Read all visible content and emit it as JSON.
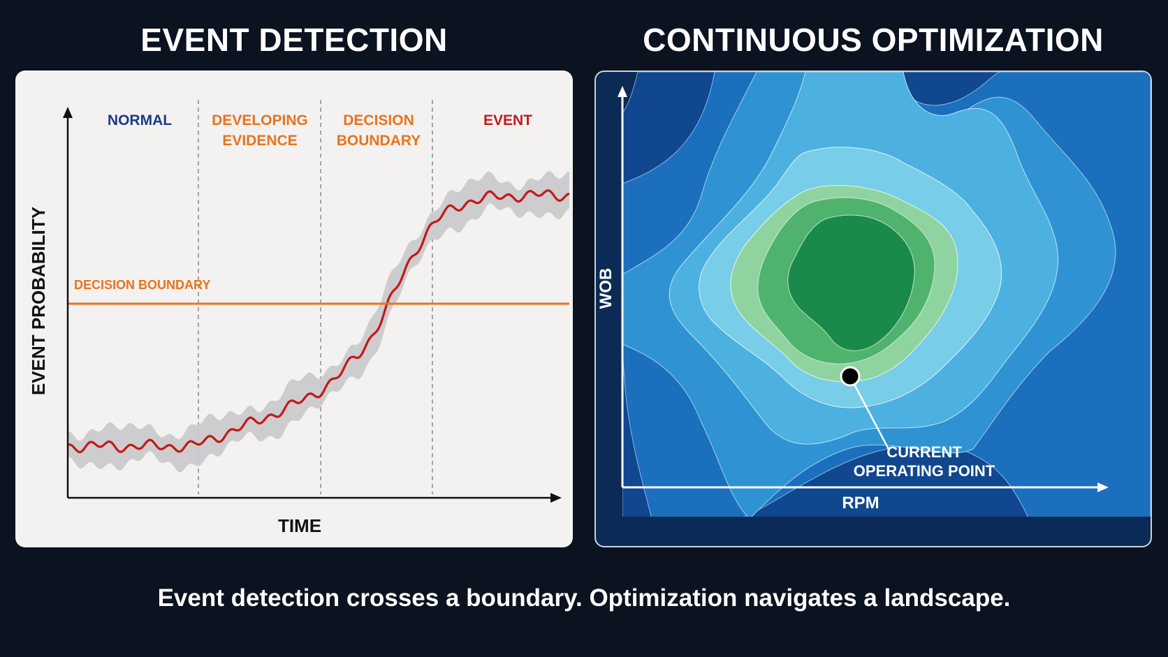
{
  "left": {
    "title": "EVENT DETECTION",
    "phases": [
      {
        "line1": "NORMAL",
        "line2": "",
        "color": "#1f3a8a"
      },
      {
        "line1": "DEVELOPING",
        "line2": "EVIDENCE",
        "color": "#e8731e"
      },
      {
        "line1": "DECISION",
        "line2": "BOUNDARY",
        "color": "#e8731e"
      },
      {
        "line1": "EVENT",
        "line2": "",
        "color": "#c01e1e"
      }
    ],
    "y_axis_label": "EVENT PROBABILITY",
    "x_axis_label": "TIME",
    "boundary_label": "DECISION BOUNDARY",
    "colors": {
      "signal": "#c41818",
      "band": "#c9c9cb",
      "boundary": "#e8731e",
      "axis": "#111111"
    }
  },
  "right": {
    "title": "CONTINUOUS OPTIMIZATION",
    "y_axis_label": "WOB",
    "x_axis_label": "RPM",
    "point_label_line1": "CURRENT",
    "point_label_line2": "OPERATING POINT",
    "colors": {
      "levels": [
        "#0b2a55",
        "#10478f",
        "#1b6fbd",
        "#2f93d3",
        "#4cb1e1",
        "#78cde8",
        "#8fd4a0",
        "#4fb36e",
        "#1a8a4a"
      ],
      "axis": "#ffffff"
    }
  },
  "caption": "Event detection crosses a boundary. Optimization navigates a landscape."
}
